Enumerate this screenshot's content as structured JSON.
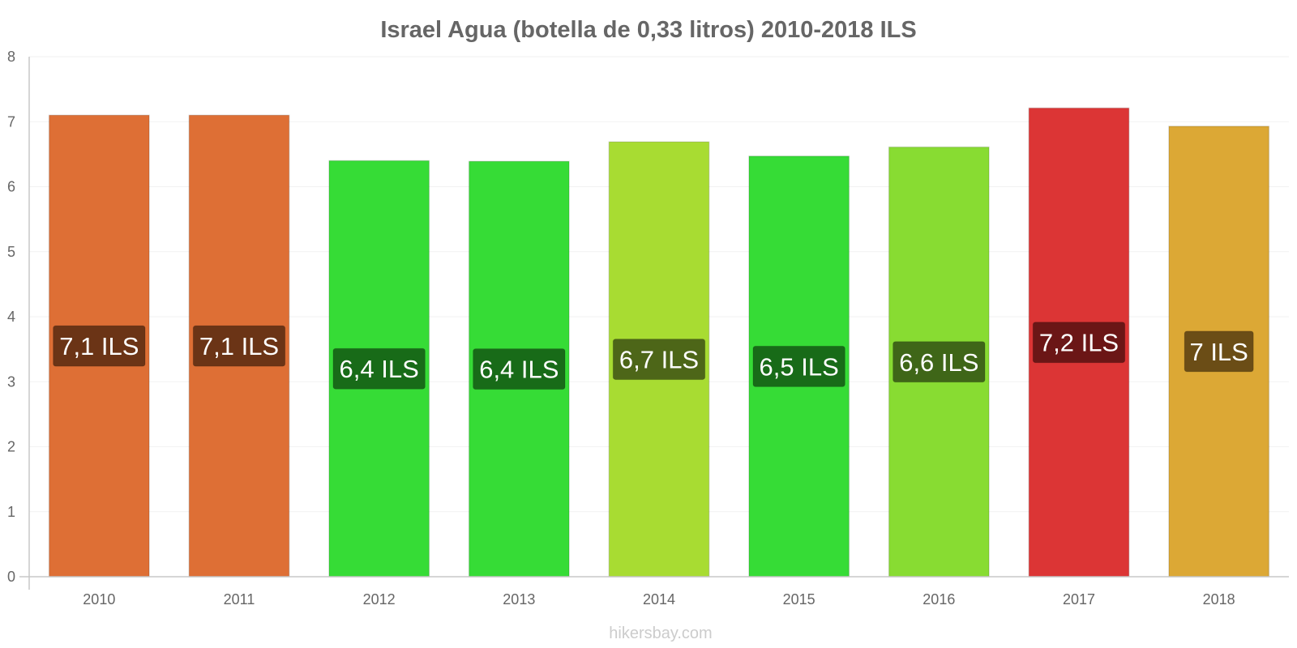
{
  "chart_data": {
    "type": "bar",
    "title": "Israel Agua (botella de 0,33 litros) 2010-2018 ILS",
    "xlabel": "",
    "ylabel": "",
    "categories": [
      "2010",
      "2011",
      "2012",
      "2013",
      "2014",
      "2015",
      "2016",
      "2017",
      "2018"
    ],
    "values": [
      7.1,
      7.1,
      6.4,
      6.39,
      6.69,
      6.47,
      6.61,
      7.21,
      6.93
    ],
    "data_labels": [
      "7,1 ILS",
      "7,1 ILS",
      "6,4 ILS",
      "6,4 ILS",
      "6,7 ILS",
      "6,5 ILS",
      "6,6 ILS",
      "7,2 ILS",
      "7 ILS"
    ],
    "bar_colors": [
      "#de6f35",
      "#de6f35",
      "#36dc36",
      "#36dc36",
      "#a8dc32",
      "#36dc36",
      "#88dc32",
      "#dc3535",
      "#dca835"
    ],
    "label_bg_colors": [
      "#6b3416",
      "#6b3416",
      "#186b18",
      "#186b18",
      "#4d6618",
      "#186b18",
      "#3f6618",
      "#6b1616",
      "#6b4d16"
    ],
    "ylim": [
      0,
      8
    ],
    "yticks": [
      "0",
      "1",
      "2",
      "3",
      "4",
      "5",
      "6",
      "7",
      "8"
    ],
    "grid": true,
    "legend": "none"
  },
  "watermark": "hikersbay.com"
}
